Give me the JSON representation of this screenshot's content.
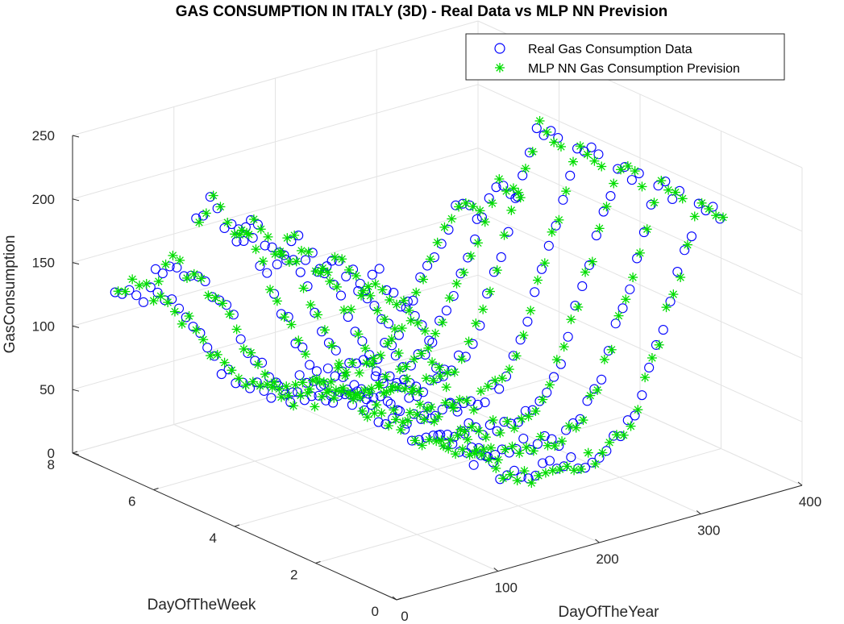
{
  "chart_data": {
    "type": "scatter",
    "title": "GAS CONSUMPTION IN ITALY (3D) - Real Data vs MLP NN Prevision",
    "xlabel": "DayOfTheYear",
    "ylabel": "DayOfTheWeek",
    "zlabel": "GasConsumption",
    "xlim": [
      0,
      400
    ],
    "ylim": [
      0,
      8
    ],
    "zlim": [
      0,
      250
    ],
    "xticks": [
      "0",
      "100",
      "200",
      "300",
      "400"
    ],
    "yticks": [
      "0",
      "2",
      "4",
      "6",
      "8"
    ],
    "zticks": [
      "0",
      "50",
      "100",
      "150",
      "200",
      "250"
    ],
    "grid": true,
    "legend_position": "top-right",
    "series": [
      {
        "name": "Real Gas Consumption Data",
        "marker": "circle",
        "color": "#0000ff",
        "dow_values": [
          1,
          2,
          3,
          4,
          5,
          6,
          7
        ],
        "profile": {
          "x": [
            0,
            10,
            20,
            30,
            40,
            50,
            60,
            70,
            80,
            90,
            100,
            110,
            120,
            130,
            140,
            150,
            160,
            170,
            180,
            190,
            200,
            210,
            220,
            230,
            240,
            250,
            260,
            270,
            280,
            290,
            300,
            310,
            320,
            330,
            340,
            350,
            360
          ],
          "z": [
            225,
            230,
            240,
            220,
            215,
            205,
            190,
            175,
            150,
            130,
            110,
            90,
            75,
            62,
            55,
            50,
            48,
            46,
            45,
            47,
            45,
            46,
            44,
            43,
            45,
            48,
            55,
            65,
            80,
            100,
            125,
            150,
            175,
            200,
            225,
            215,
            205
          ]
        },
        "weekend_factor": {
          "6": 0.75,
          "7": 0.6
        }
      },
      {
        "name": "MLP NN Gas Consumption Prevision",
        "marker": "asterisk",
        "color": "#00dd00",
        "dow_values": [
          1,
          2,
          3,
          4,
          5,
          6,
          7
        ],
        "profile": {
          "x": [
            0,
            10,
            20,
            30,
            40,
            50,
            60,
            70,
            80,
            90,
            100,
            110,
            120,
            130,
            140,
            150,
            160,
            170,
            180,
            190,
            200,
            210,
            220,
            230,
            240,
            250,
            260,
            270,
            280,
            290,
            300,
            310,
            320,
            330,
            340,
            350,
            360
          ],
          "z": [
            222,
            232,
            236,
            223,
            212,
            203,
            192,
            172,
            152,
            128,
            108,
            92,
            73,
            63,
            54,
            51,
            47,
            45,
            46,
            46,
            44,
            45,
            45,
            44,
            46,
            47,
            56,
            66,
            79,
            102,
            123,
            152,
            173,
            202,
            222,
            214,
            203
          ]
        },
        "weekend_factor": {
          "6": 0.74,
          "7": 0.61
        }
      }
    ]
  },
  "legend": {
    "items": [
      {
        "label": "Real Gas Consumption Data"
      },
      {
        "label": "MLP NN Gas Consumption Prevision"
      }
    ]
  }
}
